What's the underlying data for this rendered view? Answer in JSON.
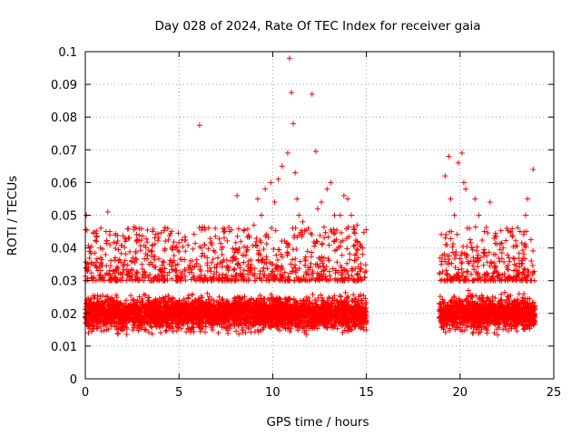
{
  "chart_data": {
    "type": "scatter",
    "title": "Day 028 of 2024, Rate Of TEC Index for receiver gaia",
    "xlabel": "GPS time / hours",
    "ylabel": "ROTI / TECUs",
    "xlim": [
      0,
      25
    ],
    "ylim": [
      0,
      0.1
    ],
    "xticks": [
      0,
      5,
      10,
      15,
      20,
      25
    ],
    "yticks": [
      0,
      0.01,
      0.02,
      0.03,
      0.04,
      0.05,
      0.06,
      0.07,
      0.08,
      0.09,
      0.1
    ],
    "xtick_labels": [
      "0",
      "5",
      "10",
      "15",
      "20",
      "25"
    ],
    "ytick_labels": [
      "0",
      "0.01",
      "0.02",
      "0.03",
      "0.04",
      "0.05",
      "0.06",
      "0.07",
      "0.08",
      "0.09",
      "0.1"
    ],
    "grid": true,
    "marker": "+",
    "color": "#ff0000",
    "coverage_hours": [
      [
        0,
        15
      ],
      [
        18.9,
        24
      ]
    ],
    "typical_range": [
      0.01,
      0.03
    ],
    "series": [
      {
        "x": [
          0.05,
          0.4,
          0.8,
          1.2,
          1.3,
          1.6,
          2.3,
          2.7,
          3.4,
          4.0,
          4.4,
          4.6,
          4.8,
          5.3,
          5.6,
          6.1,
          6.2,
          6.5,
          6.9,
          7.3,
          7.7,
          8.1,
          8.3,
          8.6,
          9.0,
          9.2,
          9.4,
          9.6,
          9.9,
          10.1,
          10.3,
          10.5,
          10.8,
          10.9,
          11.0,
          11.1,
          11.2,
          11.3,
          11.4,
          11.6,
          11.9,
          12.1,
          12.3,
          12.4,
          12.6,
          12.9,
          13.1,
          13.3,
          13.6,
          13.8,
          14.0,
          14.2,
          14.5,
          14.8,
          19.0,
          19.2,
          19.4,
          19.5,
          19.7,
          19.9,
          20.1,
          20.2,
          20.3,
          20.5,
          20.8,
          21.0,
          21.3,
          21.6,
          21.9,
          22.3,
          22.6,
          22.9,
          23.2,
          23.5,
          23.6,
          23.8,
          23.9
        ],
        "y": [
          0.05,
          0.03,
          0.04,
          0.051,
          0.045,
          0.037,
          0.043,
          0.039,
          0.035,
          0.033,
          0.046,
          0.036,
          0.033,
          0.033,
          0.036,
          0.0775,
          0.04,
          0.037,
          0.034,
          0.038,
          0.045,
          0.056,
          0.042,
          0.039,
          0.047,
          0.055,
          0.05,
          0.058,
          0.06,
          0.054,
          0.061,
          0.065,
          0.069,
          0.098,
          0.0875,
          0.078,
          0.063,
          0.055,
          0.05,
          0.048,
          0.046,
          0.087,
          0.0695,
          0.052,
          0.054,
          0.058,
          0.06,
          0.05,
          0.05,
          0.056,
          0.055,
          0.05,
          0.047,
          0.04,
          0.035,
          0.062,
          0.068,
          0.055,
          0.05,
          0.066,
          0.069,
          0.06,
          0.058,
          0.046,
          0.055,
          0.05,
          0.045,
          0.054,
          0.038,
          0.04,
          0.037,
          0.035,
          0.045,
          0.05,
          0.055,
          0.036,
          0.064
        ]
      }
    ]
  }
}
